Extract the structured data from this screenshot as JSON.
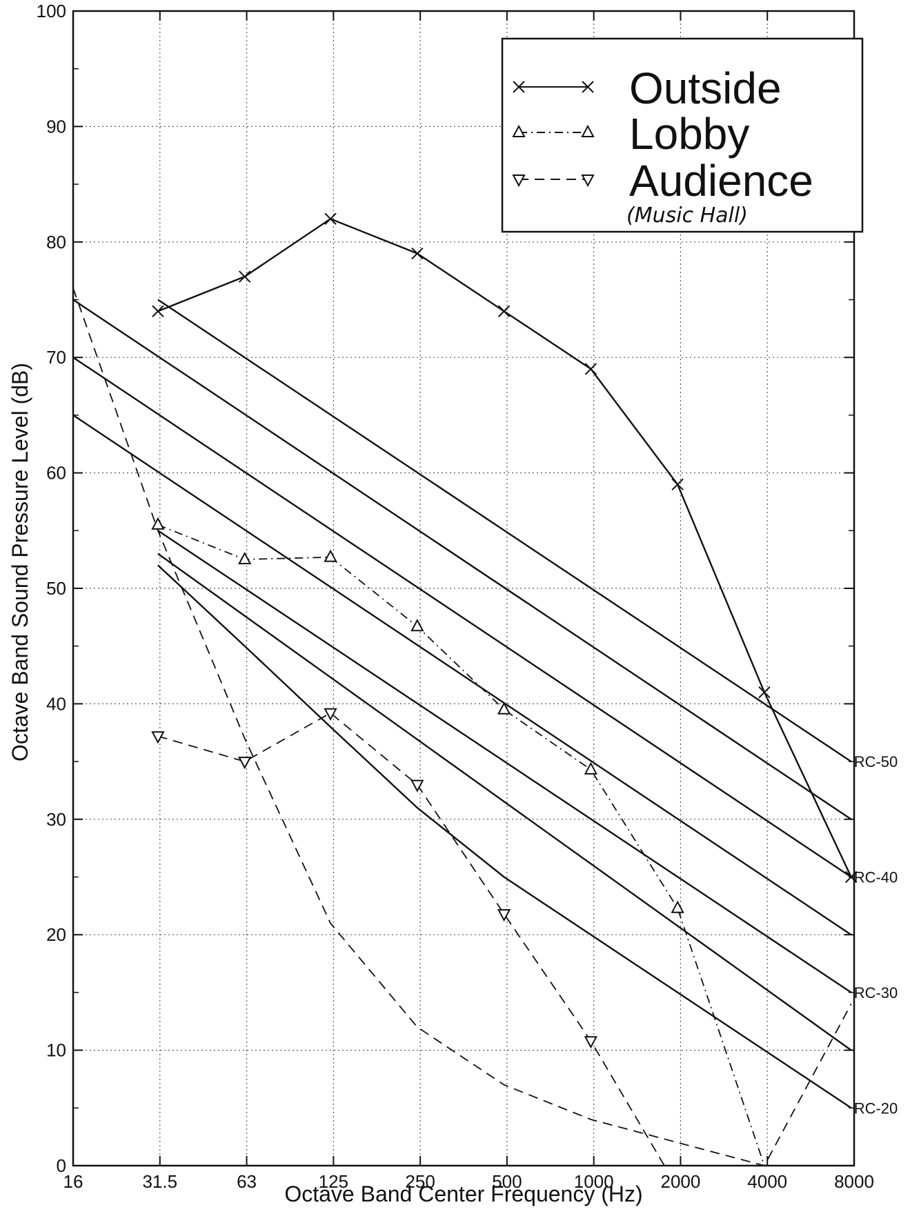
{
  "chart_data": {
    "type": "line",
    "title": "",
    "xlabel": "Octave Band Center Frequency (Hz)",
    "ylabel": "Octave Band Sound Pressure Level (dB)",
    "x_scale": "log2 (octave bands)",
    "categories": [
      "16",
      "31.5",
      "63",
      "125",
      "250",
      "500",
      "1000",
      "2000",
      "4000",
      "8000"
    ],
    "ylim": [
      0,
      100
    ],
    "y_ticks": [
      0,
      10,
      20,
      30,
      40,
      50,
      60,
      70,
      80,
      90,
      100
    ],
    "grid": true,
    "legend_position": "top-right",
    "series": [
      {
        "name": "Outside",
        "style": "solid",
        "marker": "x",
        "x": [
          "31.5",
          "63",
          "125",
          "250",
          "500",
          "1000",
          "2000",
          "4000",
          "8000"
        ],
        "values": [
          74,
          77,
          82,
          79,
          74,
          69,
          59,
          41,
          25
        ]
      },
      {
        "name": "Lobby",
        "style": "dashdot",
        "marker": "triangle-up",
        "x": [
          "31.5",
          "63",
          "125",
          "250",
          "500",
          "1000",
          "2000",
          "4000"
        ],
        "values": [
          55.5,
          52.5,
          52.7,
          46.7,
          39.5,
          34.3,
          22.3,
          0
        ]
      },
      {
        "name": "Audience",
        "style": "dashed",
        "marker": "triangle-down",
        "x": [
          "31.5",
          "63",
          "125",
          "250",
          "500",
          "1000",
          "1800"
        ],
        "values": [
          37.2,
          35,
          39.2,
          33,
          21.8,
          10.8,
          0
        ]
      }
    ],
    "extra_dashed_curve": {
      "x": [
        "16",
        "31.5",
        "63",
        "125",
        "250",
        "500",
        "1000",
        "2000",
        "4000",
        "8000"
      ],
      "values": [
        76,
        55,
        37,
        21,
        12,
        7,
        4,
        2,
        0,
        14
      ]
    },
    "rc_curves": [
      {
        "label": "RC-50",
        "x": [
          "31.5",
          "8000"
        ],
        "values": [
          75,
          35
        ]
      },
      {
        "label": "",
        "x": [
          "16",
          "8000"
        ],
        "values": [
          75,
          30
        ]
      },
      {
        "label": "RC-40",
        "x": [
          "16",
          "8000"
        ],
        "values": [
          70,
          25
        ]
      },
      {
        "label": "",
        "x": [
          "16",
          "8000"
        ],
        "values": [
          65,
          20
        ]
      },
      {
        "label": "RC-30",
        "x": [
          "31.5",
          "8000"
        ],
        "values": [
          55,
          15
        ]
      },
      {
        "label": "",
        "x": [
          "31.5",
          "8000"
        ],
        "values": [
          53,
          10
        ]
      },
      {
        "label": "RC-20",
        "x": [
          "31.5",
          "63",
          "125",
          "250",
          "500",
          "8000"
        ],
        "values": [
          52,
          45,
          38,
          31,
          25,
          5
        ]
      }
    ],
    "annotation": "(Music Hall)",
    "colors": {
      "line": "#111111",
      "grid": "#555555",
      "background": "#ffffff"
    }
  }
}
